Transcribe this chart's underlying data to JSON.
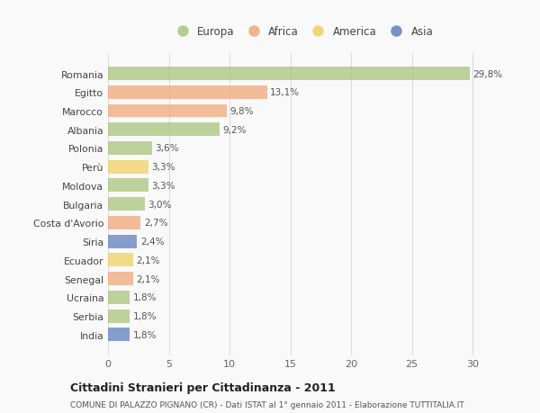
{
  "countries": [
    "Romania",
    "Egitto",
    "Marocco",
    "Albania",
    "Polonia",
    "Perù",
    "Moldova",
    "Bulgaria",
    "Costa d'Avorio",
    "Siria",
    "Ecuador",
    "Senegal",
    "Ucraina",
    "Serbia",
    "India"
  ],
  "values": [
    29.8,
    13.1,
    9.8,
    9.2,
    3.6,
    3.3,
    3.3,
    3.0,
    2.7,
    2.4,
    2.1,
    2.1,
    1.8,
    1.8,
    1.8
  ],
  "labels": [
    "29,8%",
    "13,1%",
    "9,8%",
    "9,2%",
    "3,6%",
    "3,3%",
    "3,3%",
    "3,0%",
    "2,7%",
    "2,4%",
    "2,1%",
    "2,1%",
    "1,8%",
    "1,8%",
    "1,8%"
  ],
  "colors": [
    "#a8c57a",
    "#f0a87a",
    "#f0a87a",
    "#a8c57a",
    "#a8c57a",
    "#f0d060",
    "#a8c57a",
    "#a8c57a",
    "#f0a87a",
    "#6080c0",
    "#f0d060",
    "#f0a87a",
    "#a8c57a",
    "#a8c57a",
    "#6080c0"
  ],
  "legend": [
    {
      "label": "Europa",
      "color": "#a8c57a"
    },
    {
      "label": "Africa",
      "color": "#f0a87a"
    },
    {
      "label": "America",
      "color": "#f0d060"
    },
    {
      "label": "Asia",
      "color": "#6080c0"
    }
  ],
  "title": "Cittadini Stranieri per Cittadinanza - 2011",
  "subtitle": "COMUNE DI PALAZZO PIGNANO (CR) - Dati ISTAT al 1° gennaio 2011 - Elaborazione TUTTITALIA.IT",
  "xlim": [
    0,
    32
  ],
  "xticks": [
    0,
    5,
    10,
    15,
    20,
    25,
    30
  ],
  "background_color": "#f9f9f9",
  "grid_color": "#dddddd",
  "bar_alpha": 0.75
}
